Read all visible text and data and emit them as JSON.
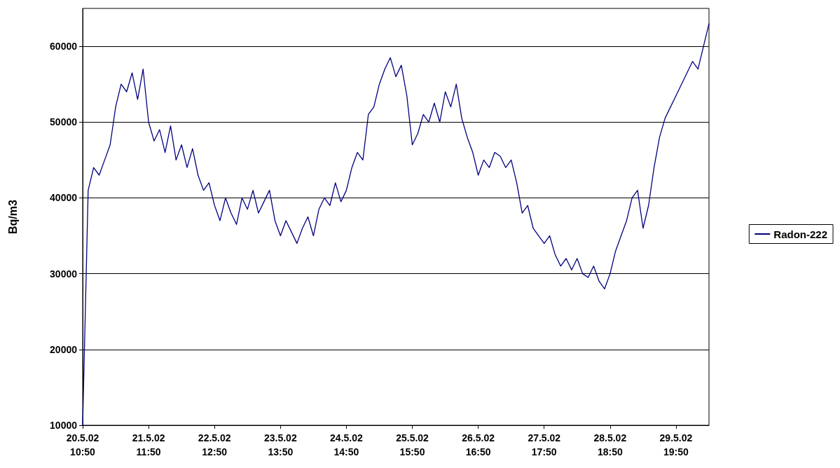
{
  "chart_data": {
    "type": "line",
    "ylabel": "Bq/m3",
    "categories": [
      "20.5.02\n10:50",
      null,
      null,
      null,
      null,
      null,
      null,
      null,
      null,
      null,
      null,
      null,
      "21.5.02\n11:50",
      null,
      null,
      null,
      null,
      null,
      null,
      null,
      null,
      null,
      null,
      null,
      "22.5.02\n12:50",
      null,
      null,
      null,
      null,
      null,
      null,
      null,
      null,
      null,
      null,
      null,
      "23.5.02\n13:50",
      null,
      null,
      null,
      null,
      null,
      null,
      null,
      null,
      null,
      null,
      null,
      "24.5.02\n14:50",
      null,
      null,
      null,
      null,
      null,
      null,
      null,
      null,
      null,
      null,
      null,
      "25.5.02\n15:50",
      null,
      null,
      null,
      null,
      null,
      null,
      null,
      null,
      null,
      null,
      null,
      "26.5.02\n16:50",
      null,
      null,
      null,
      null,
      null,
      null,
      null,
      null,
      null,
      null,
      null,
      "27.5.02\n17:50",
      null,
      null,
      null,
      null,
      null,
      null,
      null,
      null,
      null,
      null,
      null,
      "28.5.02\n18:50",
      null,
      null,
      null,
      null,
      null,
      null,
      null,
      null,
      null,
      null,
      null,
      "29.5.02\n19:50",
      null,
      null,
      null,
      null,
      null,
      null
    ],
    "series": [
      {
        "name": "Radon-222",
        "color": "#000080",
        "values": [
          10000,
          41000,
          44000,
          43000,
          45000,
          47000,
          52000,
          55000,
          54000,
          56500,
          53000,
          57000,
          50000,
          47500,
          49000,
          46000,
          49500,
          45000,
          47000,
          44000,
          46500,
          43000,
          41000,
          42000,
          39000,
          37000,
          40000,
          38000,
          36500,
          40000,
          38500,
          41000,
          38000,
          39500,
          41000,
          37000,
          35000,
          37000,
          35500,
          34000,
          36000,
          37500,
          35000,
          38500,
          40000,
          39000,
          42000,
          39500,
          41000,
          44000,
          46000,
          45000,
          51000,
          52000,
          55000,
          57000,
          58500,
          56000,
          57500,
          53500,
          47000,
          48500,
          51000,
          50000,
          52500,
          50000,
          54000,
          52000,
          55000,
          50500,
          48000,
          46000,
          43000,
          45000,
          44000,
          46000,
          45500,
          44000,
          45000,
          42000,
          38000,
          39000,
          36000,
          35000,
          34000,
          35000,
          32500,
          31000,
          32000,
          30500,
          32000,
          30000,
          29500,
          31000,
          29000,
          28000,
          30000,
          33000,
          35000,
          37000,
          40000,
          41000,
          36000,
          39000,
          44000,
          48000,
          50500,
          52000,
          53500,
          55000,
          56500,
          58000,
          57000,
          60000,
          63000
        ]
      }
    ],
    "ylim": [
      10000,
      65000
    ],
    "yticks": [
      10000,
      20000,
      30000,
      40000,
      50000,
      60000
    ],
    "grid": "y",
    "legend": "right",
    "marker": "none",
    "line_style": "solid"
  }
}
